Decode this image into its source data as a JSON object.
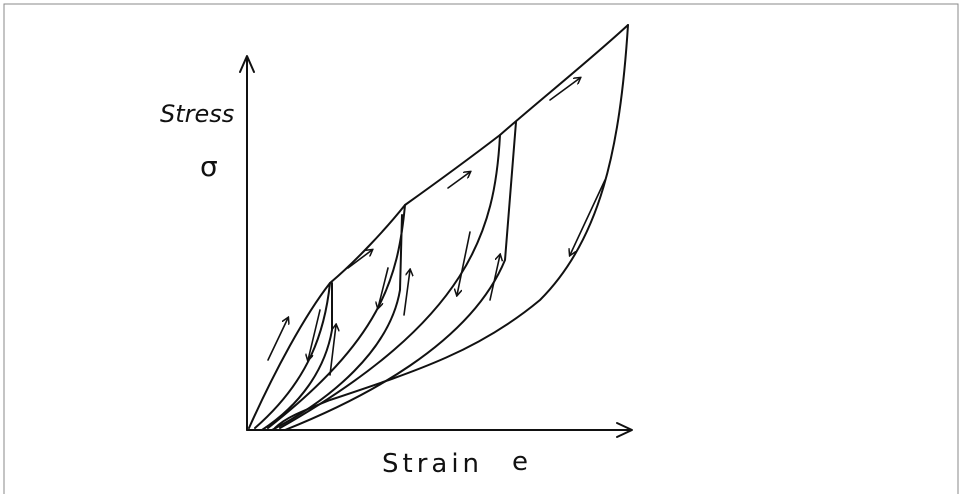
{
  "axes": {
    "y_label": "Stress",
    "y_symbol": "σ",
    "x_label": "Strain",
    "x_symbol": "e"
  }
}
